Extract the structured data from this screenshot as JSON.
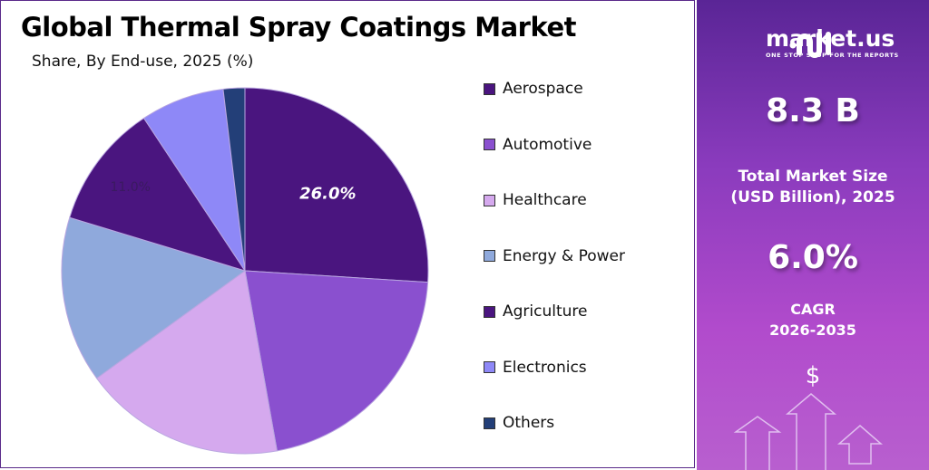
{
  "header": {
    "title": "Global Thermal Spray Coatings Market",
    "subtitle": "Share, By End-use, 2025 (%)"
  },
  "chart_data": {
    "type": "pie",
    "title": "Global Thermal Spray Coatings Market",
    "subtitle": "Share, By End-use, 2025 (%)",
    "categories": [
      "Aerospace",
      "Automotive",
      "Healthcare",
      "Energy & Power",
      "Agriculture",
      "Electronics",
      "Others"
    ],
    "values": [
      26.0,
      21.2,
      17.8,
      14.7,
      11.0,
      7.4,
      1.9
    ],
    "data_labels": [
      {
        "category": "Aerospace",
        "text": "26.0%"
      },
      {
        "category": "Agriculture",
        "text": "11.0%"
      }
    ],
    "colors": [
      "#4a157f",
      "#8a50cf",
      "#d5a9ee",
      "#8fa9dc",
      "#4a157f",
      "#8e88f7",
      "#233f78"
    ],
    "legend_position": "right",
    "start_angle": "12 o'clock, clockwise"
  },
  "sidebar": {
    "logo_text": "market.us",
    "logo_tagline": "ONE STOP SHOP FOR THE REPORTS",
    "market_size": "8.3 B",
    "market_size_label_1": "Total Market Size",
    "market_size_label_2": "(USD Billion), 2025",
    "cagr": "6.0%",
    "cagr_label_1": "CAGR",
    "cagr_label_2": "2026-2035",
    "dollar": "$"
  }
}
